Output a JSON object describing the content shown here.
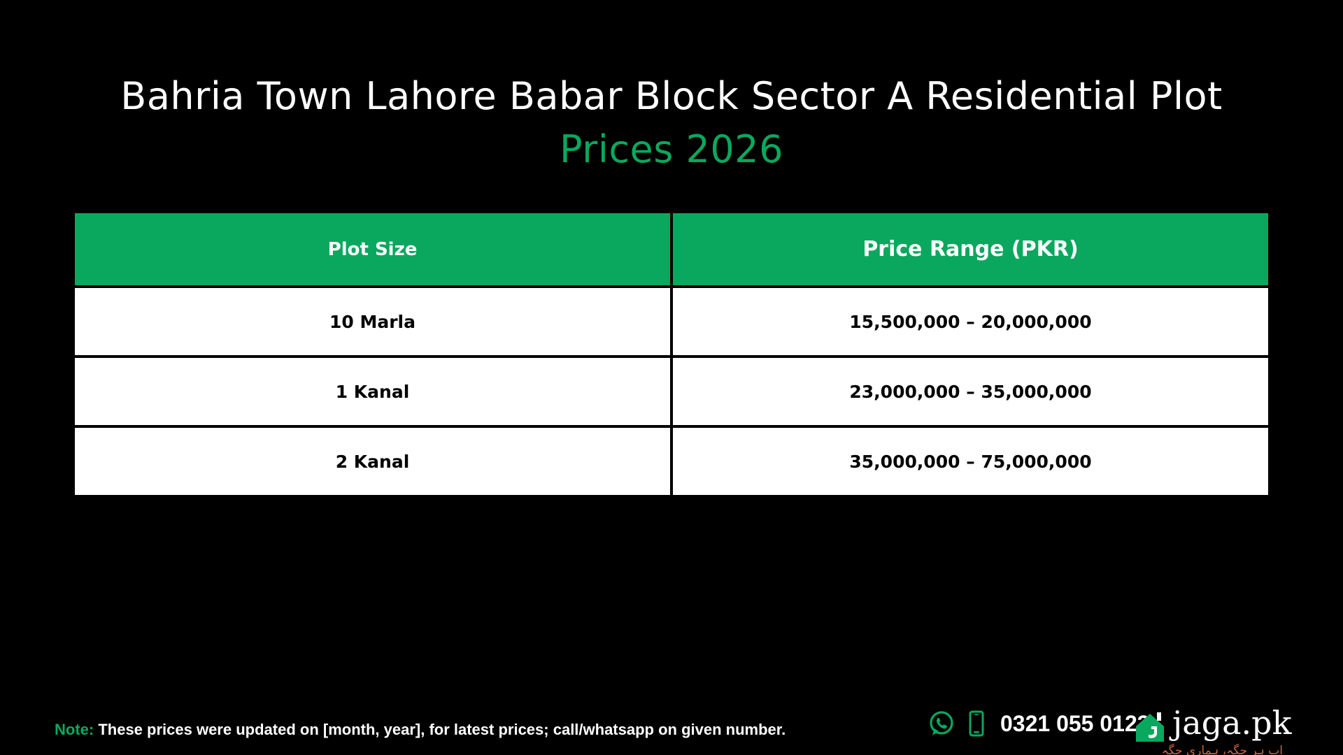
{
  "title": {
    "line1": "Bahria Town Lahore Babar Block Sector A Residential Plot",
    "line2": "Prices 2026"
  },
  "table": {
    "headers": [
      "Plot Size",
      "Price Range (PKR)"
    ],
    "rows": [
      [
        "10 Marla",
        "15,500,000 – 20,000,000"
      ],
      [
        "1 Kanal",
        "23,000,000 – 35,000,000"
      ],
      [
        "2 Kanal",
        "35,000,000 – 75,000,000"
      ]
    ]
  },
  "footer": {
    "note_label": "Note:",
    "note_text": " These prices were updated on [month, year], for latest prices; call/whatsapp on given number.",
    "phone": "0321 055 0123",
    "contact_icons": [
      "whatsapp-icon",
      "mobile-phone-icon"
    ],
    "brand_name": "jaga.pk",
    "brand_tagline": "اب ہر جگہ، ہماری جگہ"
  },
  "colors": {
    "background": "#000000",
    "accent_green": "#0aa85e",
    "text_white": "#ffffff",
    "cell_white": "#ffffff",
    "text_black": "#000000",
    "tagline_orange": "#c8663a"
  }
}
